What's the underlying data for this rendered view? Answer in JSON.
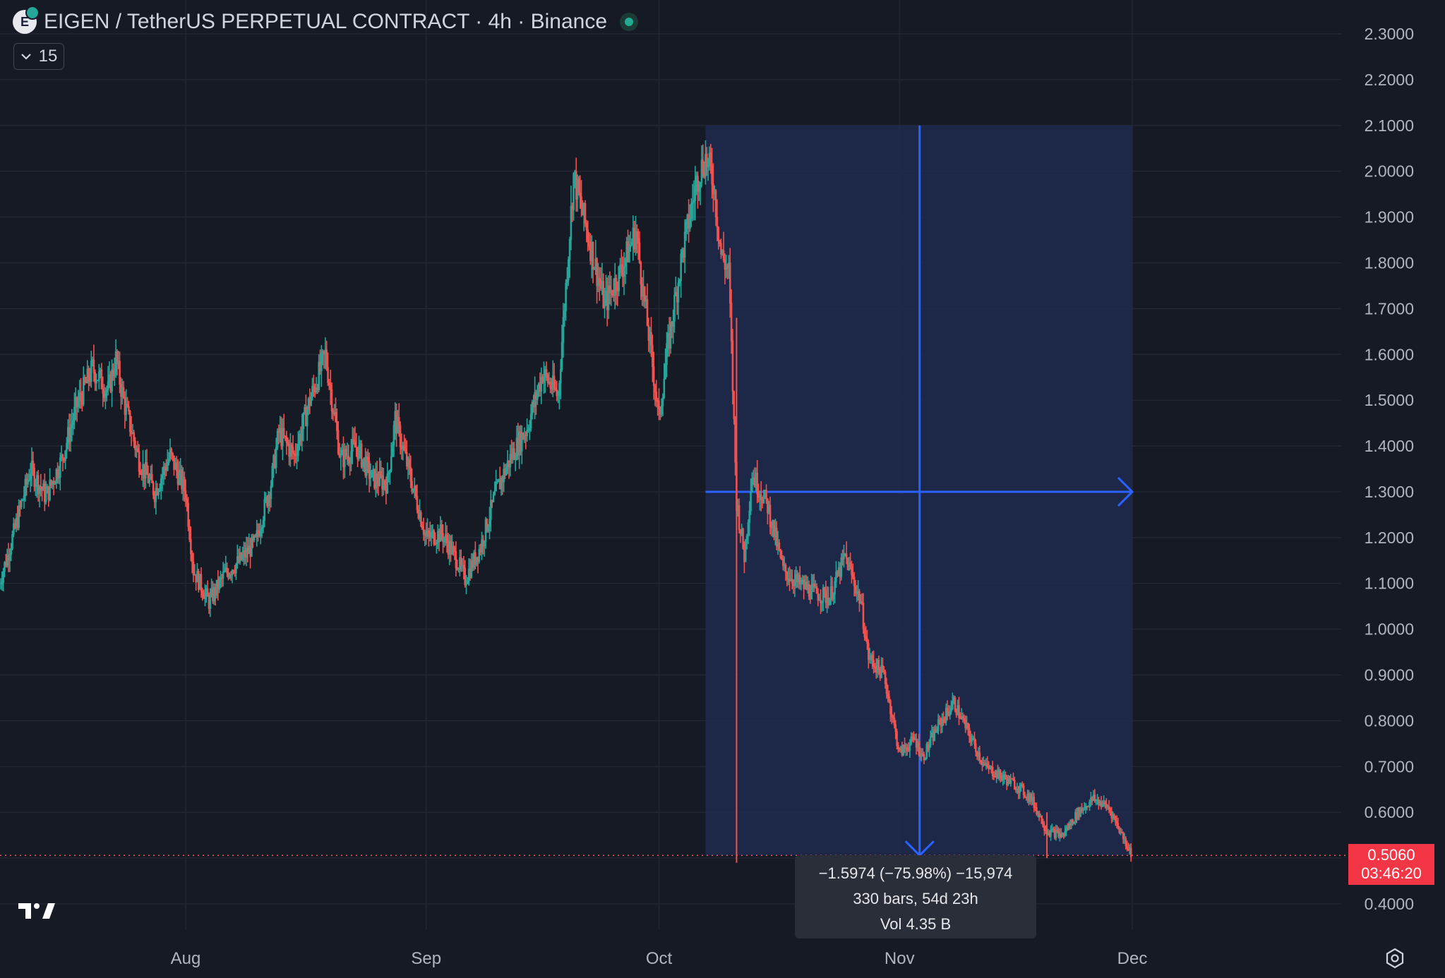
{
  "header": {
    "title": "EIGEN / TetherUS PERPETUAL CONTRACT · 4h · Binance",
    "collapse_label": "15"
  },
  "current_price": {
    "value": "0.5060",
    "countdown": "03:46:20"
  },
  "measure_tooltip": {
    "line1": "−1.5974 (−75.98%) −15,974",
    "line2": "330 bars, 54d 23h",
    "line3": "Vol 4.35 B"
  },
  "colors": {
    "background": "#161a25",
    "grid": "#232633",
    "up": "#26a69a",
    "down": "#ef5350",
    "measure_fill": "#1e2a4d",
    "measure_line": "#2962ff",
    "price_label": "#f23645"
  },
  "chart_data": {
    "type": "line",
    "title": "EIGEN / TetherUS PERPETUAL CONTRACT · 4h · Binance",
    "xlabel": "",
    "ylabel": "",
    "ylim": [
      0.35,
      2.33
    ],
    "y_ticks": [
      "2.3000",
      "2.2000",
      "2.1000",
      "2.0000",
      "1.9000",
      "1.8000",
      "1.7000",
      "1.6000",
      "1.5000",
      "1.4000",
      "1.3000",
      "1.2000",
      "1.1000",
      "1.0000",
      "0.9000",
      "0.8000",
      "0.7000",
      "0.6000",
      "0.4000"
    ],
    "x_ticks": [
      "Aug",
      "Sep",
      "Oct",
      "Nov",
      "Dec"
    ],
    "x_tick_dates": [
      "2024-08-01",
      "2024-09-01",
      "2024-10-01",
      "2024-11-01",
      "2024-12-01"
    ],
    "xlim": [
      "2024-07-08",
      "2024-12-30"
    ],
    "grid": true,
    "legend": "none",
    "series": [
      {
        "values": [
          {
            "x": "2024-07-08",
            "y": 1.1
          },
          {
            "x": "2024-07-10",
            "y": 1.22
          },
          {
            "x": "2024-07-12",
            "y": 1.35
          },
          {
            "x": "2024-07-14",
            "y": 1.29
          },
          {
            "x": "2024-07-16",
            "y": 1.37
          },
          {
            "x": "2024-07-18",
            "y": 1.49
          },
          {
            "x": "2024-07-20",
            "y": 1.57
          },
          {
            "x": "2024-07-22",
            "y": 1.52
          },
          {
            "x": "2024-07-23",
            "y": 1.59
          },
          {
            "x": "2024-07-24",
            "y": 1.5
          },
          {
            "x": "2024-07-26",
            "y": 1.37
          },
          {
            "x": "2024-07-28",
            "y": 1.3
          },
          {
            "x": "2024-07-30",
            "y": 1.38
          },
          {
            "x": "2024-08-01",
            "y": 1.3
          },
          {
            "x": "2024-08-02",
            "y": 1.13
          },
          {
            "x": "2024-08-04",
            "y": 1.06
          },
          {
            "x": "2024-08-06",
            "y": 1.12
          },
          {
            "x": "2024-08-08",
            "y": 1.15
          },
          {
            "x": "2024-08-10",
            "y": 1.19
          },
          {
            "x": "2024-08-12",
            "y": 1.32
          },
          {
            "x": "2024-08-13",
            "y": 1.43
          },
          {
            "x": "2024-08-15",
            "y": 1.38
          },
          {
            "x": "2024-08-17",
            "y": 1.5
          },
          {
            "x": "2024-08-19",
            "y": 1.6
          },
          {
            "x": "2024-08-21",
            "y": 1.37
          },
          {
            "x": "2024-08-23",
            "y": 1.4
          },
          {
            "x": "2024-08-25",
            "y": 1.33
          },
          {
            "x": "2024-08-27",
            "y": 1.32
          },
          {
            "x": "2024-08-28",
            "y": 1.46
          },
          {
            "x": "2024-08-30",
            "y": 1.33
          },
          {
            "x": "2024-09-01",
            "y": 1.2
          },
          {
            "x": "2024-09-03",
            "y": 1.21
          },
          {
            "x": "2024-09-05",
            "y": 1.15
          },
          {
            "x": "2024-09-06",
            "y": 1.11
          },
          {
            "x": "2024-09-08",
            "y": 1.18
          },
          {
            "x": "2024-09-10",
            "y": 1.3
          },
          {
            "x": "2024-09-12",
            "y": 1.38
          },
          {
            "x": "2024-09-14",
            "y": 1.44
          },
          {
            "x": "2024-09-16",
            "y": 1.56
          },
          {
            "x": "2024-09-18",
            "y": 1.51
          },
          {
            "x": "2024-09-20",
            "y": 1.99
          },
          {
            "x": "2024-09-22",
            "y": 1.85
          },
          {
            "x": "2024-09-24",
            "y": 1.71
          },
          {
            "x": "2024-09-26",
            "y": 1.78
          },
          {
            "x": "2024-09-28",
            "y": 1.87
          },
          {
            "x": "2024-09-30",
            "y": 1.6
          },
          {
            "x": "2024-10-01",
            "y": 1.46
          },
          {
            "x": "2024-10-02",
            "y": 1.6
          },
          {
            "x": "2024-10-04",
            "y": 1.82
          },
          {
            "x": "2024-10-06",
            "y": 1.99
          },
          {
            "x": "2024-10-07",
            "y": 2.03
          },
          {
            "x": "2024-10-08",
            "y": 1.98
          },
          {
            "x": "2024-10-09",
            "y": 1.82
          },
          {
            "x": "2024-10-10",
            "y": 1.78
          },
          {
            "x": "2024-10-11",
            "y": 1.28
          },
          {
            "x": "2024-10-12",
            "y": 1.16
          },
          {
            "x": "2024-10-13",
            "y": 1.34
          },
          {
            "x": "2024-10-15",
            "y": 1.27
          },
          {
            "x": "2024-10-17",
            "y": 1.13
          },
          {
            "x": "2024-10-19",
            "y": 1.1
          },
          {
            "x": "2024-10-21",
            "y": 1.08
          },
          {
            "x": "2024-10-23",
            "y": 1.07
          },
          {
            "x": "2024-10-25",
            "y": 1.16
          },
          {
            "x": "2024-10-27",
            "y": 1.06
          },
          {
            "x": "2024-10-28",
            "y": 0.94
          },
          {
            "x": "2024-10-30",
            "y": 0.9
          },
          {
            "x": "2024-11-01",
            "y": 0.73
          },
          {
            "x": "2024-11-03",
            "y": 0.76
          },
          {
            "x": "2024-11-04",
            "y": 0.72
          },
          {
            "x": "2024-11-06",
            "y": 0.79
          },
          {
            "x": "2024-11-08",
            "y": 0.84
          },
          {
            "x": "2024-11-10",
            "y": 0.77
          },
          {
            "x": "2024-11-12",
            "y": 0.7
          },
          {
            "x": "2024-11-14",
            "y": 0.68
          },
          {
            "x": "2024-11-16",
            "y": 0.66
          },
          {
            "x": "2024-11-18",
            "y": 0.63
          },
          {
            "x": "2024-11-20",
            "y": 0.56
          },
          {
            "x": "2024-11-22",
            "y": 0.55
          },
          {
            "x": "2024-11-24",
            "y": 0.6
          },
          {
            "x": "2024-11-26",
            "y": 0.63
          },
          {
            "x": "2024-11-28",
            "y": 0.61
          },
          {
            "x": "2024-12-01",
            "y": 0.506
          }
        ]
      }
    ],
    "measurement": {
      "start_date": "2024-10-07",
      "end_date": "2024-12-01",
      "start_price": 2.1,
      "end_price": 0.506
    }
  }
}
